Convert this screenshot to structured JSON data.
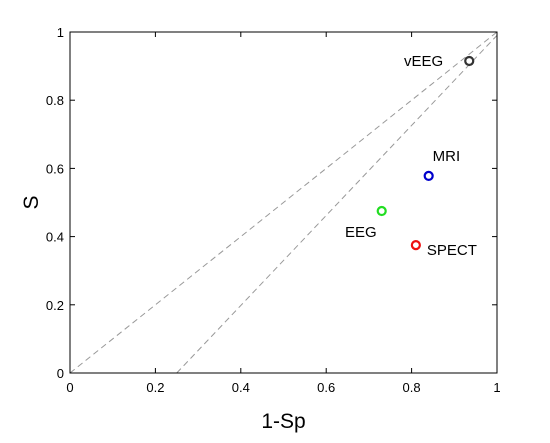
{
  "chart_data": {
    "type": "scatter",
    "xlabel": "1-Sp",
    "ylabel": "S",
    "xlim": [
      0,
      1
    ],
    "ylim": [
      0,
      1
    ],
    "x_ticks": [
      "0",
      "0.2",
      "0.4",
      "0.6",
      "0.8",
      "1"
    ],
    "y_ticks": [
      "0",
      "0.2",
      "0.4",
      "0.6",
      "0.8",
      "1"
    ],
    "grid": false,
    "reference_lines": [
      {
        "style": "dashed",
        "points": [
          [
            0,
            0
          ],
          [
            1,
            1
          ]
        ]
      },
      {
        "style": "dashed",
        "points": [
          [
            0.25,
            0
          ],
          [
            1,
            0.99
          ]
        ]
      }
    ],
    "points": [
      {
        "label": "vEEG",
        "x": 0.935,
        "y": 0.915,
        "color": "#333333"
      },
      {
        "label": "MRI",
        "x": 0.84,
        "y": 0.578,
        "color": "#0000cc"
      },
      {
        "label": "EEG",
        "x": 0.73,
        "y": 0.475,
        "color": "#22dd22"
      },
      {
        "label": "SPECT",
        "x": 0.81,
        "y": 0.375,
        "color": "#ee1111"
      }
    ]
  }
}
